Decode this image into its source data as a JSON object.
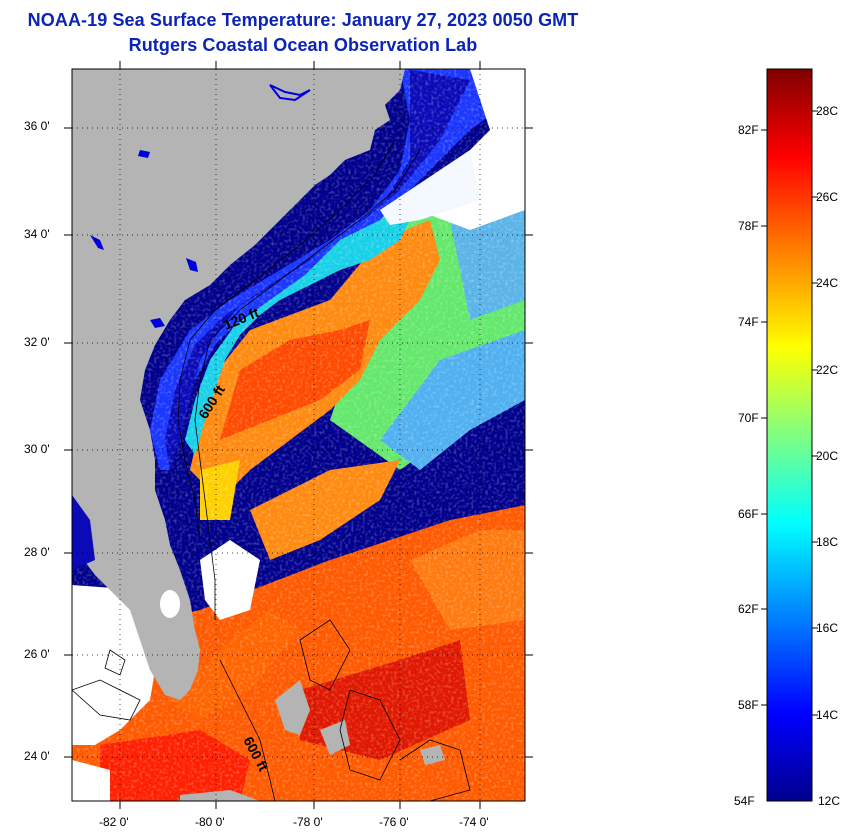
{
  "title": "NOAA-19 Sea Surface Temperature:  January 27, 2023 0050 GMT",
  "subtitle": "Rutgers Coastal Ocean Observation Lab",
  "map": {
    "lat_ticks": [
      "36 0'",
      "34 0'",
      "32 0'",
      "30 0'",
      "28 0'",
      "26 0'",
      "24 0'"
    ],
    "lon_ticks": [
      "-82 0'",
      "-80 0'",
      "-78 0'",
      "-76 0'",
      "-74 0'"
    ],
    "depth_contours": [
      "120 ft",
      "600 ft",
      "600 ft"
    ],
    "colors": {
      "land": "#b4b4b4",
      "cold": "#00008c",
      "warm": "#ff6400",
      "cloud": "#ffffff"
    }
  },
  "colorbar": {
    "fahrenheit_labels": [
      "82F",
      "78F",
      "74F",
      "70F",
      "66F",
      "62F",
      "58F",
      "54F"
    ],
    "celsius_labels": [
      "28C",
      "26C",
      "24C",
      "22C",
      "20C",
      "18C",
      "16C",
      "14C",
      "12C"
    ],
    "stops": [
      "#00008c",
      "#0000ff",
      "#0080ff",
      "#00ffff",
      "#80ff80",
      "#ffff00",
      "#ff8000",
      "#ff0000",
      "#800000"
    ]
  }
}
